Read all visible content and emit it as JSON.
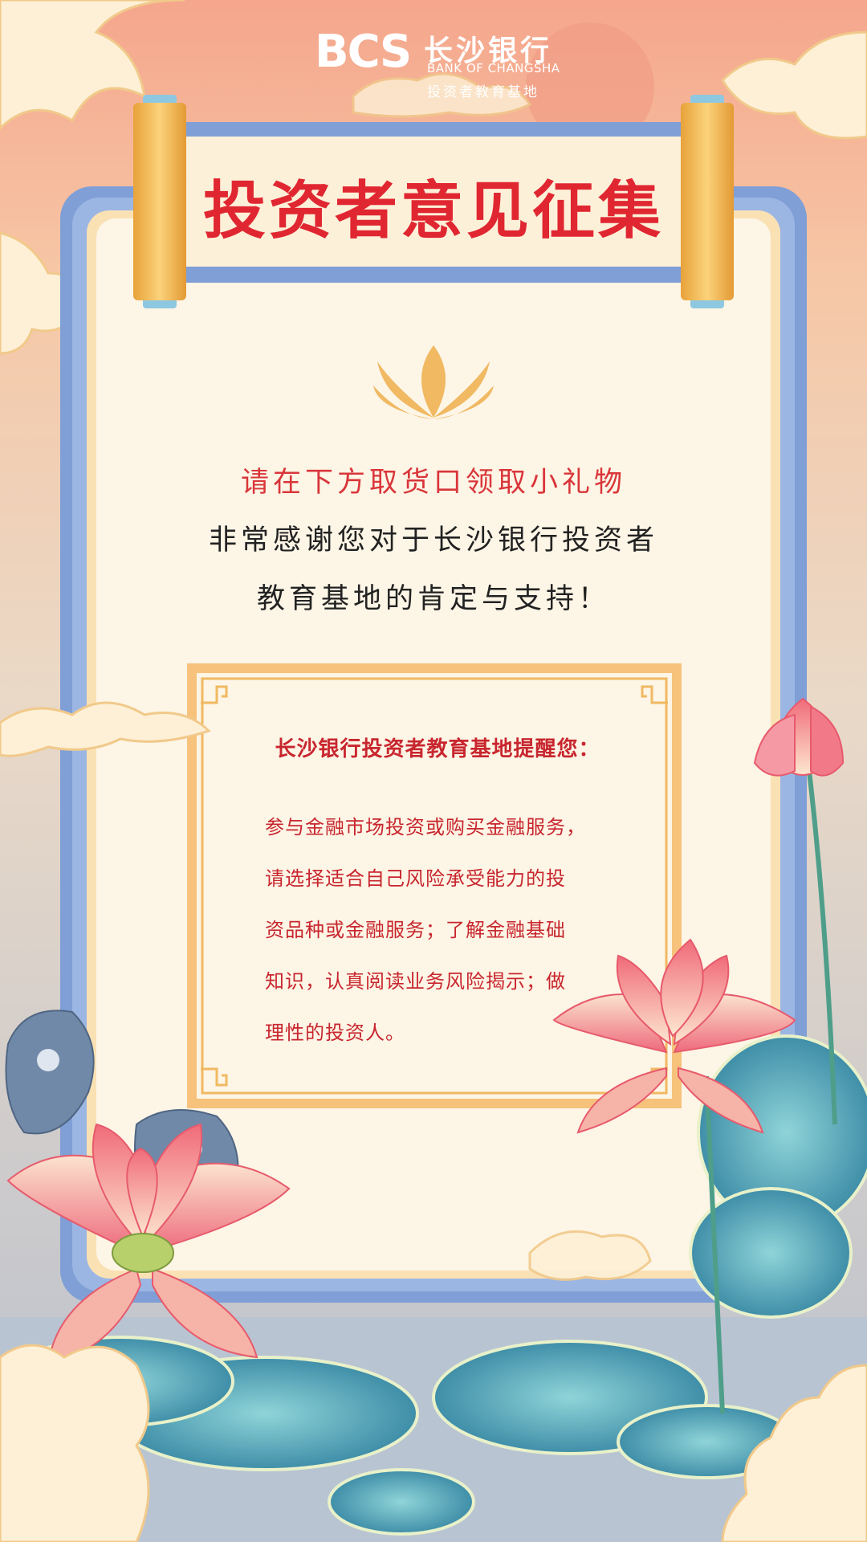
{
  "header": {
    "logo_mark": "BCS",
    "bank_name": "长沙银行",
    "bank_name_en": "BANK OF CHANGSHA",
    "subtitle": "投资者教育基地"
  },
  "title": "投资者意见征集",
  "message": {
    "line1": "请在下方取货口领取小礼物",
    "line2": "非常感谢您对于长沙银行投资者",
    "line3": "教育基地的肯定与支持！"
  },
  "reminder": {
    "title": "长沙银行投资者教育基地提醒您：",
    "lines": [
      "参与金融市场投资或购买金融服务，",
      "请选择适合自己风险承受能力的投",
      "资品种或金融服务；了解金融基础",
      "知识，认真阅读业务风险揭示；做",
      "理性的投资人。"
    ]
  },
  "colors": {
    "title_red": "#e02731",
    "frame_blue": "#7f9fd6",
    "paper": "#fdf5e6",
    "gold": "#f0b962"
  }
}
